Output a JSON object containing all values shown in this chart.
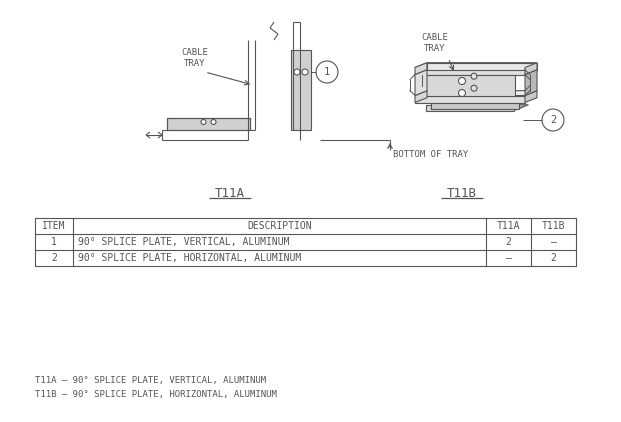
{
  "line_color": "#555555",
  "table_headers": [
    "ITEM",
    "DESCRIPTION",
    "T11A",
    "T11B"
  ],
  "table_rows": [
    [
      "1",
      "90° SPLICE PLATE, VERTICAL, ALUMINUM",
      "2",
      "—"
    ],
    [
      "2",
      "90° SPLICE PLATE, HORIZONTAL, ALUMINUM",
      "—",
      "2"
    ]
  ],
  "label_t11a": "T11A",
  "label_t11b": "T11B",
  "footnote1": "T11A – 90° SPLICE PLATE, VERTICAL, ALUMINUM",
  "footnote2": "T11B – 90° SPLICE PLATE, HORIZONTAL, ALUMINUM",
  "cable_tray_label": "CABLE\nTRAY",
  "bottom_of_tray_label": "BOTTOM OF TRAY",
  "item1_label": "1",
  "item2_label": "2"
}
